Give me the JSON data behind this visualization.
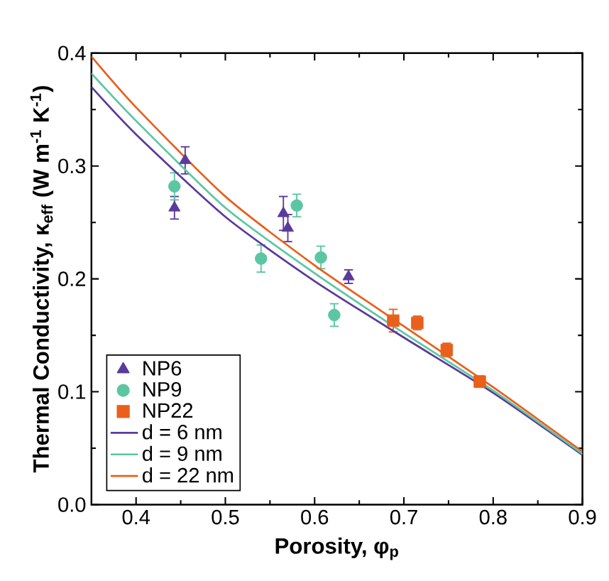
{
  "chart_data": {
    "type": "scatter",
    "xlabel": "Porosity, φ$_{p}$",
    "ylabel": "Thermal Conductivity, κ$_{eff}$ (W m$^{-1}$ K$^{-1}$)",
    "xlim": [
      0.35,
      0.9
    ],
    "ylim": [
      0,
      0.4
    ],
    "xticks": [
      0.4,
      0.5,
      0.6,
      0.7,
      0.8,
      0.9
    ],
    "yticks": [
      {
        "value": 0,
        "label": "0.0"
      },
      0.1,
      0.2,
      0.3,
      0.4
    ],
    "grid": false,
    "legend": "bottom left",
    "series": [
      {
        "name": "NP6",
        "marker": "triangle",
        "color": "#5b3a9b",
        "x": [
          0.443,
          0.455,
          0.565,
          0.57,
          0.638
        ],
        "values": [
          0.263,
          0.305,
          0.258,
          0.245,
          0.202
        ],
        "errors": [
          0.01,
          0.012,
          0.015,
          0.012,
          0.006
        ]
      },
      {
        "name": "NP9",
        "marker": "circle",
        "color": "#5cc6a3",
        "x": [
          0.443,
          0.54,
          0.58,
          0.607,
          0.622
        ],
        "values": [
          0.282,
          0.218,
          0.265,
          0.219,
          0.168
        ],
        "errors": [
          0.012,
          0.012,
          0.01,
          0.01,
          0.01
        ]
      },
      {
        "name": "NP22",
        "marker": "square",
        "color": "#e8601c",
        "x": [
          0.688,
          0.715,
          0.748,
          0.785
        ],
        "values": [
          0.163,
          0.161,
          0.137,
          0.109
        ],
        "errors": [
          0.01,
          0.006,
          0.006,
          0.005
        ]
      },
      {
        "name": "d = 6 nm",
        "type": "line",
        "marker": "none",
        "color": "#5b3a9b",
        "x": [
          0.35,
          0.4,
          0.5,
          0.6,
          0.7,
          0.8,
          0.9
        ],
        "values": [
          0.37,
          0.328,
          0.255,
          0.198,
          0.148,
          0.099,
          0.044
        ]
      },
      {
        "name": "d = 9 nm",
        "type": "line",
        "marker": "none",
        "color": "#5cc6a3",
        "x": [
          0.35,
          0.4,
          0.5,
          0.6,
          0.7,
          0.8,
          0.9
        ],
        "values": [
          0.382,
          0.34,
          0.263,
          0.205,
          0.152,
          0.101,
          0.045
        ]
      },
      {
        "name": "d = 22 nm",
        "type": "line",
        "marker": "none",
        "color": "#e8601c",
        "x": [
          0.35,
          0.4,
          0.5,
          0.6,
          0.7,
          0.8,
          0.9
        ],
        "values": [
          0.397,
          0.352,
          0.273,
          0.212,
          0.158,
          0.104,
          0.047
        ]
      }
    ]
  }
}
